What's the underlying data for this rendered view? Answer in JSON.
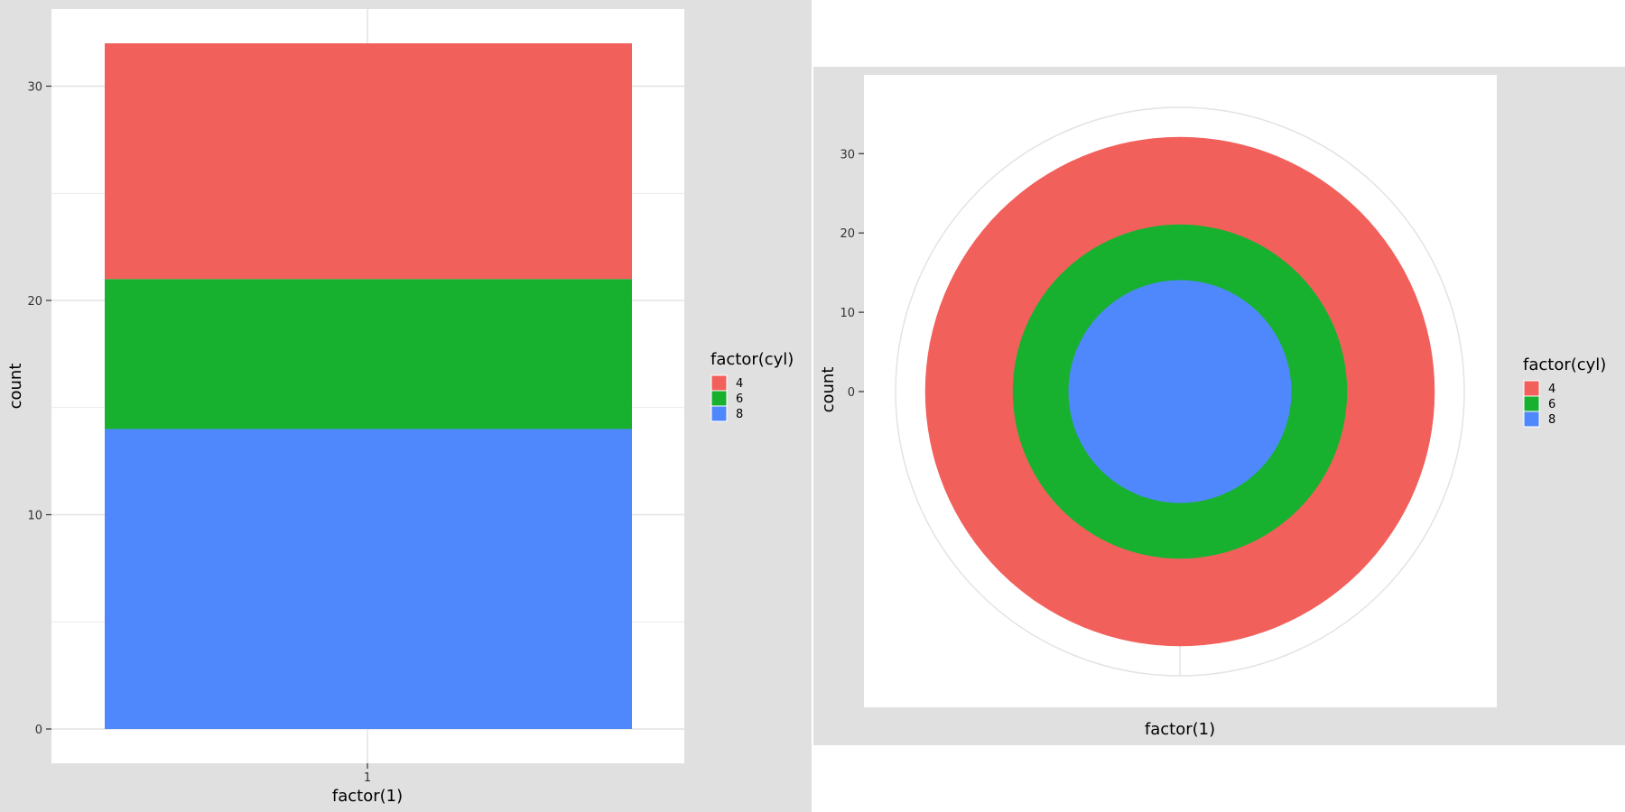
{
  "chart_data": [
    {
      "type": "bar",
      "stacked": true,
      "categories": [
        "1"
      ],
      "series": [
        {
          "name": "8",
          "values": [
            14
          ]
        },
        {
          "name": "6",
          "values": [
            7
          ]
        },
        {
          "name": "4",
          "values": [
            11
          ]
        }
      ],
      "xlabel": "factor(1)",
      "ylabel": "count",
      "ylim": [
        0,
        32
      ],
      "yticks": [
        0,
        10,
        20,
        30
      ],
      "legend": {
        "title": "factor(cyl)",
        "items": [
          "4",
          "6",
          "8"
        ],
        "placement": "right"
      },
      "grid": true
    },
    {
      "type": "pie",
      "coord": "polar",
      "categories": [
        "1"
      ],
      "series": [
        {
          "name": "8",
          "values": [
            14
          ]
        },
        {
          "name": "6",
          "values": [
            7
          ]
        },
        {
          "name": "4",
          "values": [
            11
          ]
        }
      ],
      "xlabel": "factor(1)",
      "ylabel": "count",
      "yticks": [
        0,
        10,
        20,
        30
      ],
      "legend": {
        "title": "factor(cyl)",
        "items": [
          "4",
          "6",
          "8"
        ],
        "placement": "right"
      },
      "grid": true
    }
  ],
  "colors": {
    "4": "#F2605C",
    "6": "#18B12F",
    "8": "#4F88FD",
    "panel_bg": "#E0E0E0",
    "grid": "#E3E3E3",
    "plot_bg": "#FFFFFF"
  }
}
